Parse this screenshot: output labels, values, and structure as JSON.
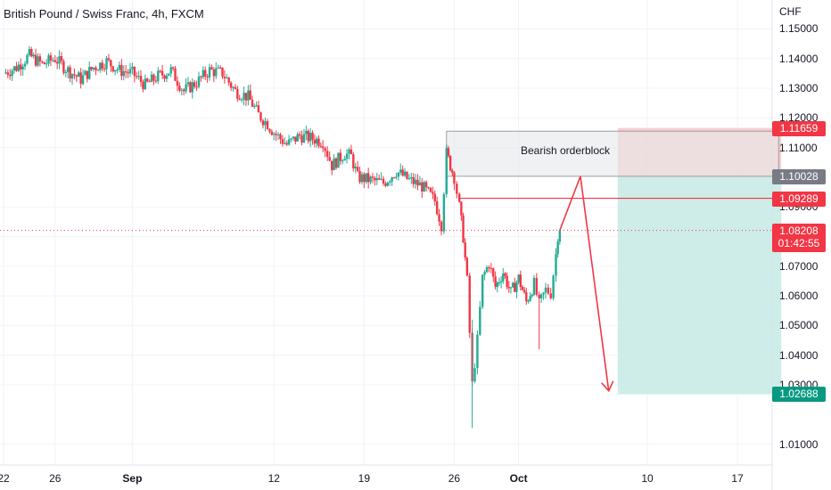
{
  "header": {
    "title": "British Pound / Swiss Franc, 4h, FXCM",
    "currency": "CHF"
  },
  "colors": {
    "up": "#22ab94",
    "down": "#f23645",
    "grid": "#f0f3fa",
    "orderblock_fill": "#e6e7ea",
    "orderblock_border": "#9b9ea5",
    "stop_zone": "#f7c7c7",
    "target_zone": "#c9eae5",
    "annotation_line": "#f23645"
  },
  "chart_data": {
    "type": "candlestick",
    "title": "British Pound / Swiss Franc, 4h, FXCM",
    "ylabel": "CHF",
    "ylim": [
      1.003,
      1.1555
    ],
    "y_ticks": [
      "1.15000",
      "1.14000",
      "1.13000",
      "1.12000",
      "1.11000",
      "1.09000",
      "1.08000",
      "1.07000",
      "1.06000",
      "1.05000",
      "1.04000",
      "1.03000",
      "1.01000"
    ],
    "x_ticks": [
      {
        "label": "22",
        "day": 22
      },
      {
        "label": "26",
        "day": 26
      },
      {
        "label": "Sep",
        "day": 32,
        "bold": true
      },
      {
        "label": "12",
        "day": 43
      },
      {
        "label": "19",
        "day": 50
      },
      {
        "label": "26",
        "day": 57
      },
      {
        "label": "Oct",
        "day": 62,
        "bold": true
      },
      {
        "label": "10",
        "day": 72
      },
      {
        "label": "17",
        "day": 79
      }
    ],
    "x_domain_days": [
      22,
      81
    ],
    "price_path": [
      [
        22.0,
        1.135
      ],
      [
        23.0,
        1.137
      ],
      [
        24.0,
        1.141
      ],
      [
        25.0,
        1.138
      ],
      [
        26.0,
        1.14
      ],
      [
        27.0,
        1.136
      ],
      [
        28.0,
        1.133
      ],
      [
        29.0,
        1.137
      ],
      [
        30.0,
        1.139
      ],
      [
        31.0,
        1.136
      ],
      [
        32.0,
        1.135
      ],
      [
        33.0,
        1.131
      ],
      [
        34.0,
        1.134
      ],
      [
        35.0,
        1.136
      ],
      [
        36.0,
        1.129
      ],
      [
        37.0,
        1.132
      ],
      [
        38.0,
        1.136
      ],
      [
        39.0,
        1.135
      ],
      [
        40.0,
        1.129
      ],
      [
        41.0,
        1.127
      ],
      [
        41.8,
        1.121
      ],
      [
        42.5,
        1.118
      ],
      [
        43.0,
        1.115
      ],
      [
        44.0,
        1.111
      ],
      [
        45.0,
        1.114
      ],
      [
        46.0,
        1.113
      ],
      [
        46.8,
        1.112
      ],
      [
        47.5,
        1.104
      ],
      [
        48.5,
        1.108
      ],
      [
        49.0,
        1.107
      ],
      [
        49.5,
        1.1
      ],
      [
        50.5,
        1.099
      ],
      [
        51.5,
        1.098
      ],
      [
        52.5,
        1.102
      ],
      [
        53.5,
        1.099
      ],
      [
        54.5,
        1.097
      ],
      [
        55.5,
        1.092
      ],
      [
        56.0,
        1.084
      ],
      [
        56.4,
        1.108
      ],
      [
        57.0,
        1.1
      ],
      [
        57.4,
        1.09
      ],
      [
        57.7,
        1.08
      ],
      [
        58.0,
        1.065
      ],
      [
        58.4,
        1.03
      ],
      [
        58.8,
        1.045
      ],
      [
        59.2,
        1.066
      ],
      [
        59.7,
        1.071
      ],
      [
        60.2,
        1.063
      ],
      [
        60.8,
        1.068
      ],
      [
        61.4,
        1.061
      ],
      [
        62.0,
        1.066
      ],
      [
        62.6,
        1.058
      ],
      [
        63.2,
        1.064
      ],
      [
        63.6,
        1.057
      ],
      [
        64.1,
        1.062
      ],
      [
        64.5,
        1.061
      ],
      [
        64.9,
        1.074
      ],
      [
        65.2,
        1.087
      ]
    ],
    "orderblock": {
      "label": "Bearish orderblock",
      "top": 1.1155,
      "bottom": 1.1003,
      "start_day": 56.4,
      "end_day": 82.2
    },
    "position": {
      "entry": 1.10028,
      "stop": 1.11659,
      "target": 1.02688,
      "start_day": 69.7,
      "end_day": 82.4
    },
    "horizontal_line": {
      "price": 1.09289,
      "start_day": 57.4
    },
    "projection": [
      [
        65.2,
        1.0821
      ],
      [
        66.8,
        1.1003
      ],
      [
        69.0,
        1.028
      ]
    ],
    "current_price": 1.08208,
    "countdown": "01:42:55",
    "price_badges": [
      {
        "value": "1.11659",
        "color": "#f23645"
      },
      {
        "value": "1.10028",
        "color": "#787b86"
      },
      {
        "value": "1.09289",
        "color": "#f23645"
      },
      {
        "value": "1.08208",
        "sub": "01:42:55",
        "color": "#f23645"
      },
      {
        "value": "1.02688",
        "color": "#089981"
      }
    ]
  }
}
